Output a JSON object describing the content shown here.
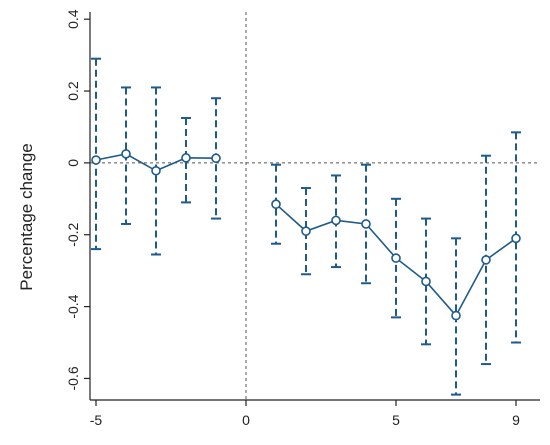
{
  "chart_data": {
    "type": "line",
    "title": "",
    "xlabel": "",
    "ylabel": "Percentage change",
    "xlim": [
      -5.2,
      9.8
    ],
    "ylim": [
      -0.66,
      0.42
    ],
    "x_ticks": [
      -5,
      0,
      5,
      9
    ],
    "y_ticks": [
      0.4,
      0.2,
      0,
      -0.2,
      -0.4,
      -0.6
    ],
    "y_tick_labels": [
      "0.4",
      "0.2",
      "0",
      "-0.2",
      "-0.4",
      "-0.6"
    ],
    "reference_lines": {
      "x": 0,
      "y": 0
    },
    "grid": false,
    "legend": "none",
    "colors": {
      "series": "#1f5b8a",
      "reference": "#555555",
      "axis": "#222222"
    },
    "series": [
      {
        "segment": "pre",
        "x": [
          -5,
          -4,
          -3,
          -2,
          -1
        ],
        "y": [
          0.008,
          0.025,
          -0.022,
          0.014,
          0.013
        ],
        "ci_low": [
          -0.24,
          -0.17,
          -0.255,
          -0.11,
          -0.155
        ],
        "ci_high": [
          0.29,
          0.21,
          0.21,
          0.125,
          0.18
        ]
      },
      {
        "segment": "post",
        "x": [
          1,
          2,
          3,
          4,
          5,
          6,
          7,
          8,
          9
        ],
        "y": [
          -0.115,
          -0.19,
          -0.16,
          -0.17,
          -0.265,
          -0.33,
          -0.425,
          -0.27,
          -0.21
        ],
        "ci_low": [
          -0.225,
          -0.31,
          -0.29,
          -0.335,
          -0.43,
          -0.505,
          -0.645,
          -0.56,
          -0.5
        ],
        "ci_high": [
          -0.005,
          -0.07,
          -0.035,
          -0.005,
          -0.1,
          -0.155,
          -0.21,
          0.02,
          0.085
        ]
      }
    ]
  }
}
